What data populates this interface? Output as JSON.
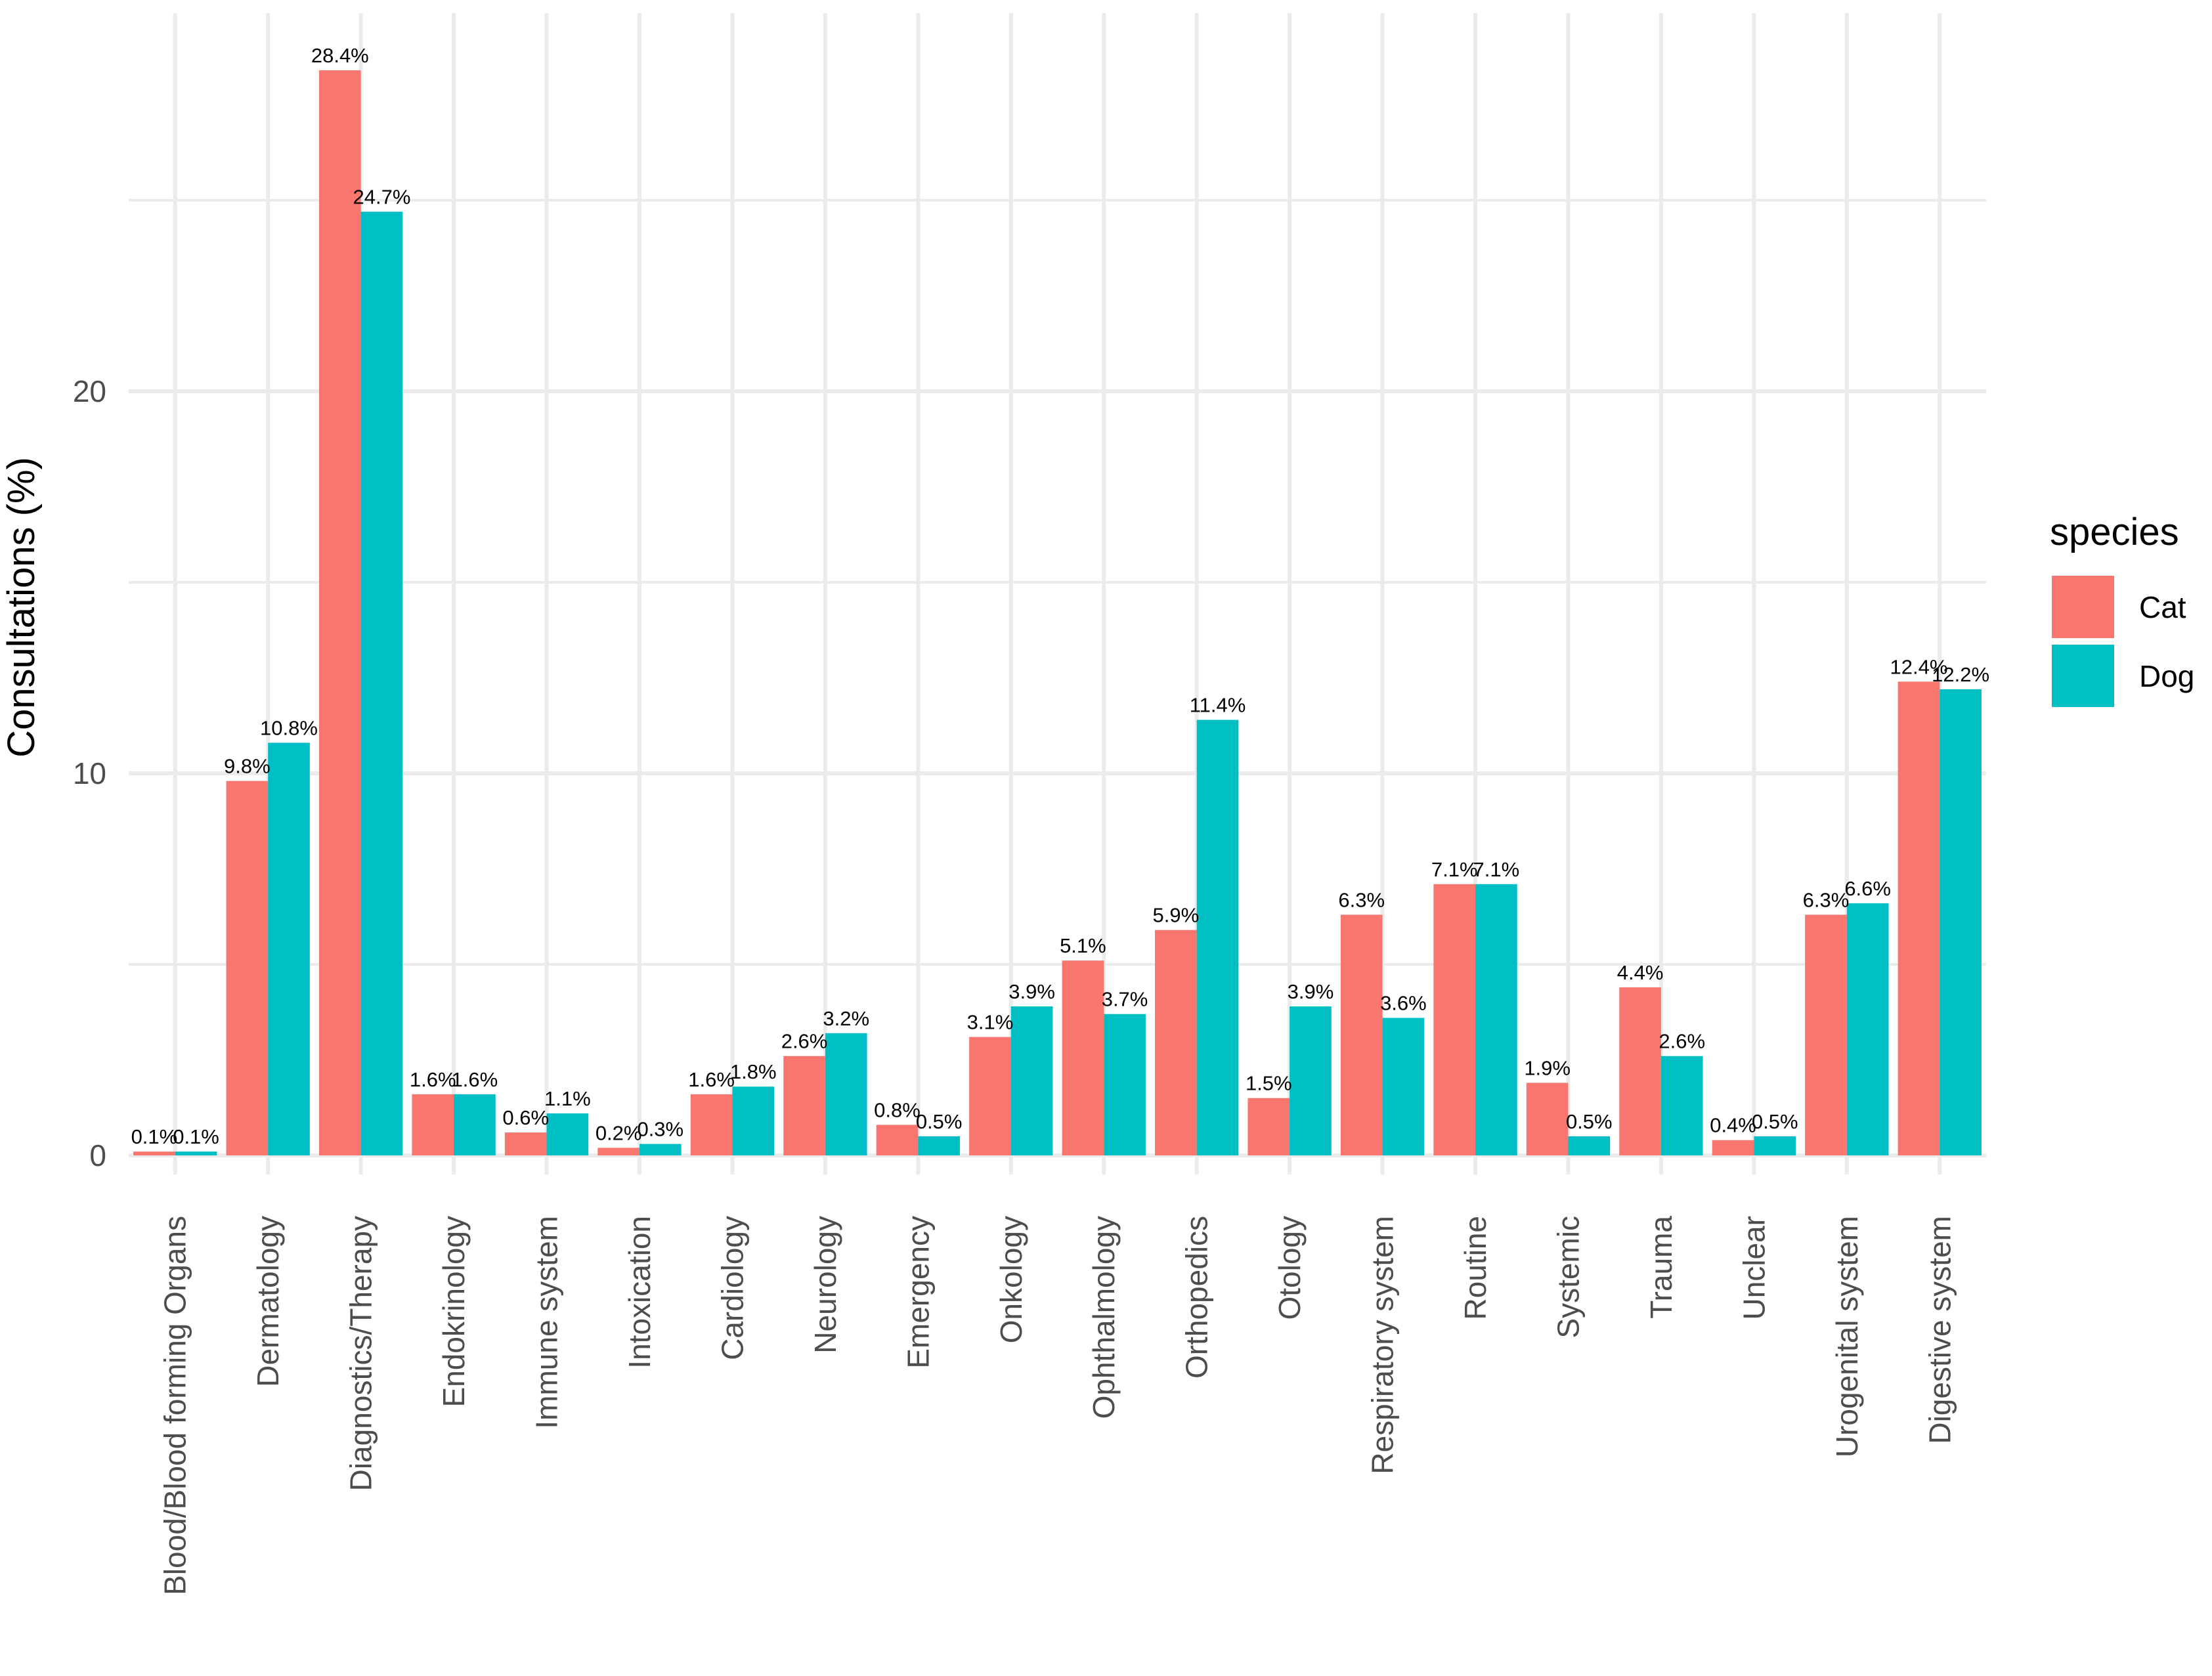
{
  "chart_data": {
    "type": "bar",
    "title": "",
    "xlabel": "",
    "ylabel": "Consultations (%)",
    "ylim": [
      -0.5,
      30
    ],
    "yticks": [
      0,
      10,
      20
    ],
    "ytick_labels": [
      "0",
      "10",
      "20"
    ],
    "grid": true,
    "legend": {
      "title": "species",
      "position": "right"
    },
    "categories": [
      "Blood/Blood forming Organs",
      "Dermatology",
      "Diagnostics/Therapy",
      "Endokrinology",
      "Immune system",
      "Intoxication",
      "Cardiology",
      "Neurology",
      "Emergency",
      "Onkology",
      "Ophthalmology",
      "Orthopedics",
      "Otology",
      "Respiratory system",
      "Routine",
      "Systemic",
      "Trauma",
      "Unclear",
      "Urogenital system",
      "Digestive system"
    ],
    "series": [
      {
        "name": "Cat",
        "color": "#F8766D",
        "values": [
          0.1,
          9.8,
          28.4,
          1.6,
          0.6,
          0.2,
          1.6,
          2.6,
          0.8,
          3.1,
          5.1,
          5.9,
          1.5,
          6.3,
          7.1,
          1.9,
          4.4,
          0.4,
          6.3,
          12.4
        ],
        "labels": [
          "0.1%",
          "9.8%",
          "28.4%",
          "1.6%",
          "0.6%",
          "0.2%",
          "1.6%",
          "2.6%",
          "0.8%",
          "3.1%",
          "5.1%",
          "5.9%",
          "1.5%",
          "6.3%",
          "7.1%",
          "1.9%",
          "4.4%",
          "0.4%",
          "6.3%",
          "12.4%"
        ]
      },
      {
        "name": "Dog",
        "color": "#00BFC4",
        "values": [
          0.1,
          10.8,
          24.7,
          1.6,
          1.1,
          0.3,
          1.8,
          3.2,
          0.5,
          3.9,
          3.7,
          11.4,
          3.9,
          3.6,
          7.1,
          0.5,
          2.6,
          0.5,
          6.6,
          12.2
        ],
        "labels": [
          "0.1%",
          "10.8%",
          "24.7%",
          "1.6%",
          "1.1%",
          "0.3%",
          "1.8%",
          "3.2%",
          "0.5%",
          "3.9%",
          "3.7%",
          "11.4%",
          "3.9%",
          "3.6%",
          "7.1%",
          "0.5%",
          "2.6%",
          "0.5%",
          "6.6%",
          "12.2%"
        ]
      }
    ]
  }
}
